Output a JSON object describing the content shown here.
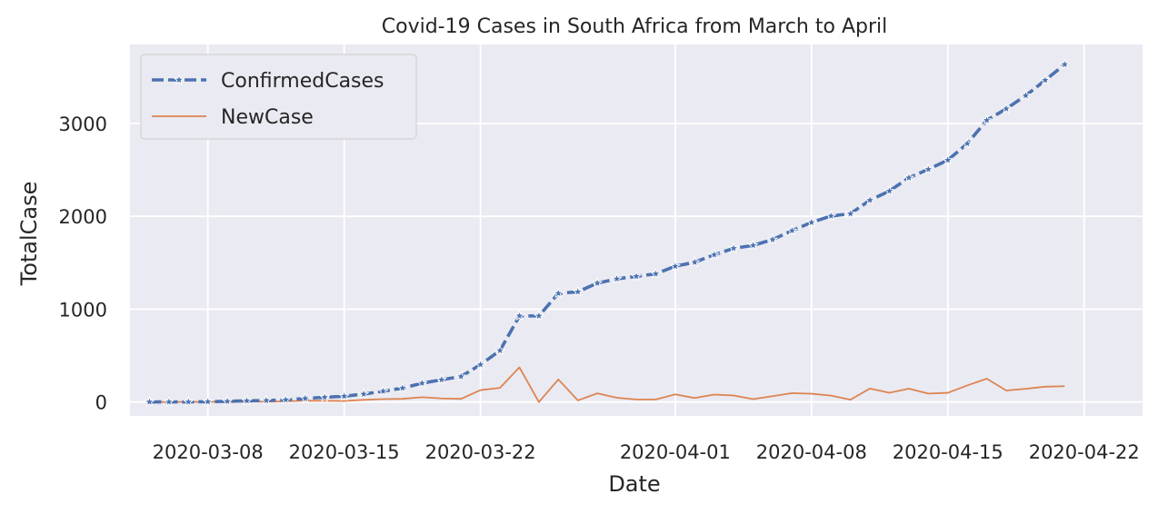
{
  "chart_data": {
    "type": "line",
    "title": "Covid-19 Cases in South Africa from March to April",
    "xlabel": "Date",
    "ylabel": "TotalCase",
    "x_start": "2020-03-05",
    "x_end": "2020-04-23",
    "xlim": [
      "2020-03-04",
      "2020-04-25"
    ],
    "ylim": [
      -150,
      3850
    ],
    "x_ticks": [
      "2020-03-08",
      "2020-03-15",
      "2020-03-22",
      "2020-04-01",
      "2020-04-08",
      "2020-04-15",
      "2020-04-22"
    ],
    "y_ticks": [
      0,
      1000,
      2000,
      3000
    ],
    "grid": true,
    "background": "#eaeaf2",
    "legend_position": "top-left",
    "series": [
      {
        "name": "ConfirmedCases",
        "color": "#4c72b0",
        "style": "dashed-star-markers",
        "values": [
          1,
          1,
          1,
          3,
          7,
          13,
          16,
          24,
          38,
          51,
          62,
          85,
          116,
          150,
          202,
          240,
          274,
          402,
          554,
          927,
          927,
          1170,
          1187,
          1280,
          1326,
          1353,
          1380,
          1462,
          1505,
          1585,
          1655,
          1686,
          1749,
          1845,
          1934,
          2003,
          2028,
          2173,
          2272,
          2415,
          2506,
          2605,
          2783,
          3034,
          3158,
          3300,
          3465,
          3635
        ]
      },
      {
        "name": "NewCase",
        "color": "#dd8452",
        "style": "solid",
        "values": [
          1,
          0,
          0,
          2,
          4,
          6,
          3,
          8,
          14,
          13,
          11,
          23,
          31,
          34,
          52,
          38,
          34,
          128,
          152,
          373,
          0,
          243,
          17,
          93,
          46,
          27,
          27,
          82,
          43,
          80,
          70,
          31,
          63,
          96,
          89,
          69,
          25,
          145,
          99,
          143,
          91,
          99,
          178,
          251,
          124,
          142,
          165,
          170
        ]
      }
    ]
  }
}
